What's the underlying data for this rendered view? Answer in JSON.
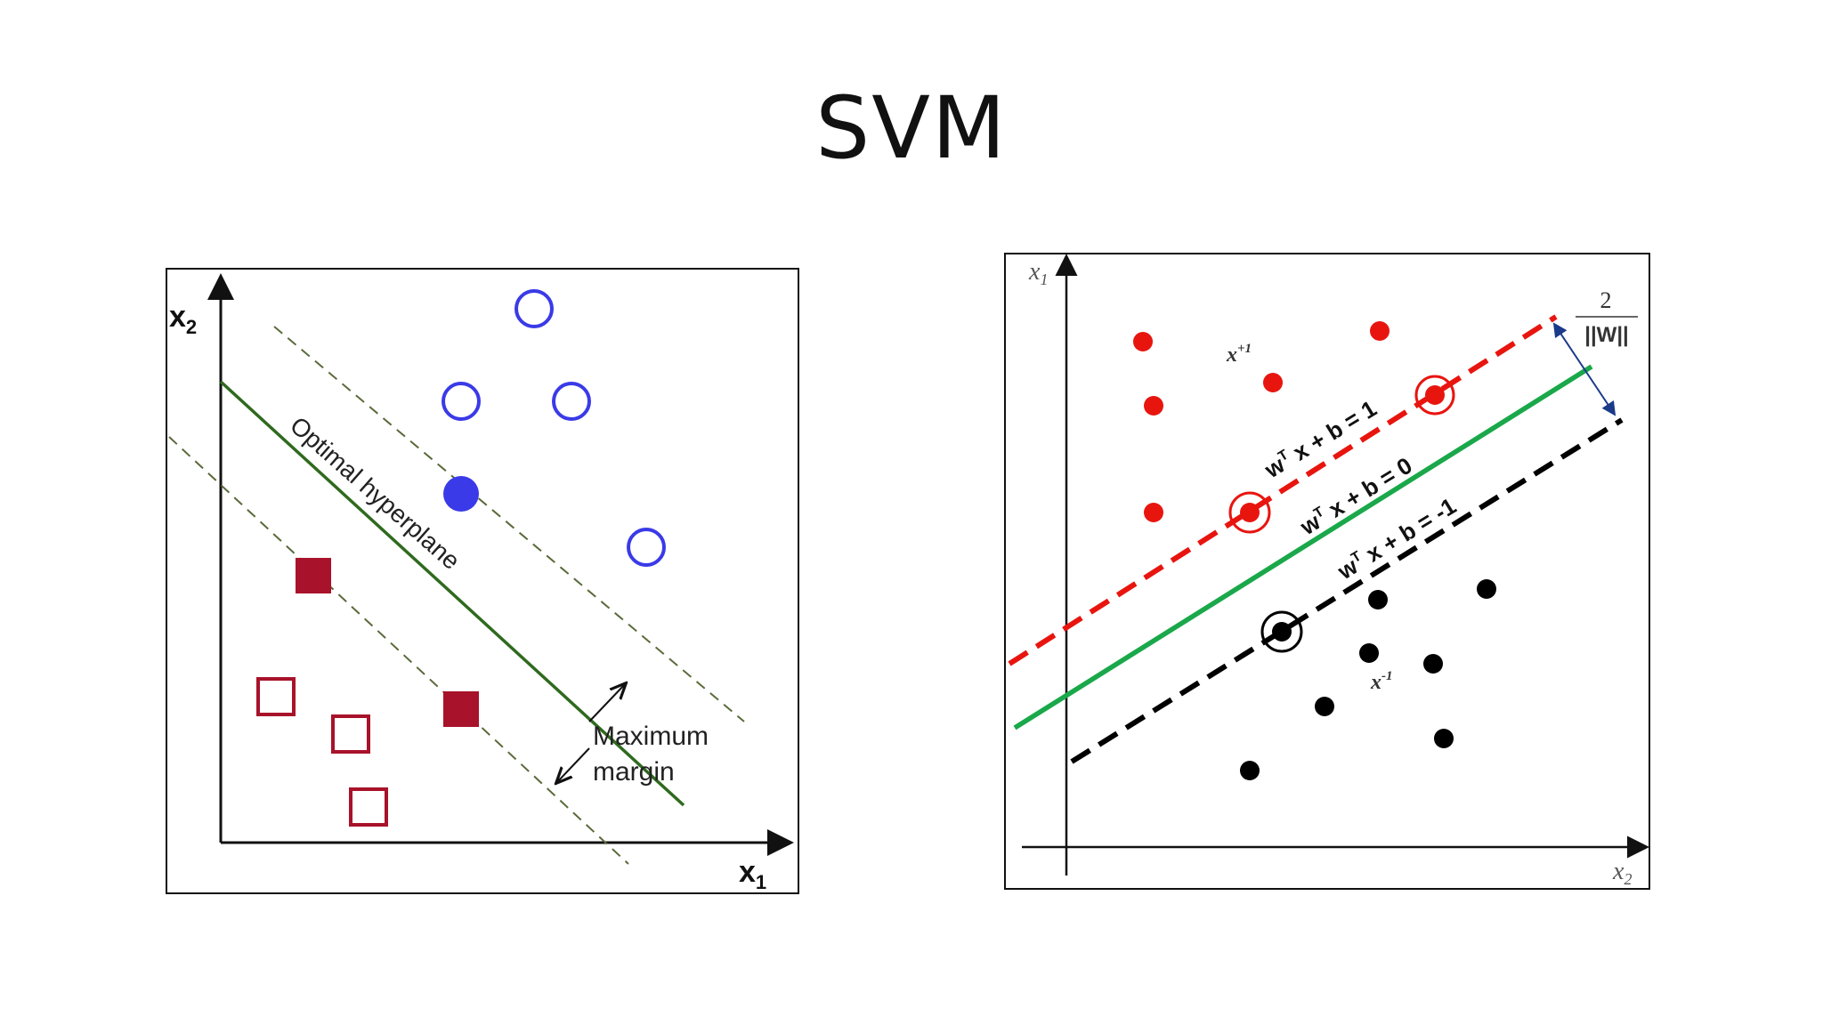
{
  "slide": {
    "title": "SVM"
  },
  "left_figure": {
    "x_axis_label": "x",
    "x_axis_sub": "1",
    "y_axis_label": "x",
    "y_axis_sub": "2",
    "hyperplane_label": "Optimal hyperplane",
    "margin_label_line1": "Maximum",
    "margin_label_line2": "margin",
    "colors": {
      "class_a": "#3a3ae8",
      "class_b": "#a8122a",
      "hyperplane": "#2f6a1e",
      "margin": "#5a6a3a"
    }
  },
  "right_figure": {
    "x_axis_label": "x",
    "x_axis_sub": "2",
    "y_axis_label": "x",
    "y_axis_sub": "1",
    "positive_class_label": "x",
    "positive_class_sup": "+1",
    "negative_class_label": "x",
    "negative_class_sup": "-1",
    "upper_margin_eq": "w",
    "upper_margin_eq_sup": "T",
    "upper_margin_eq_rest": " x + b = 1",
    "hyperplane_eq": "w",
    "hyperplane_eq_sup": "T",
    "hyperplane_eq_rest": " x + b = 0",
    "lower_margin_eq": "w",
    "lower_margin_eq_sup": "T",
    "lower_margin_eq_rest": " x + b = -1",
    "margin_width_numerator": "2",
    "margin_width_denominator": "||W||",
    "colors": {
      "positive": "#e8150f",
      "negative": "#000000",
      "hyperplane": "#1aa84a"
    }
  }
}
